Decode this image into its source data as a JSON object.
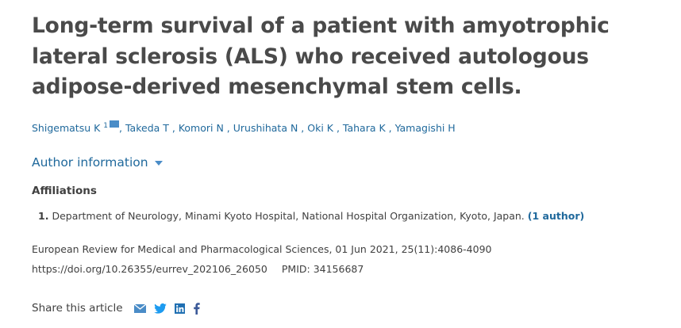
{
  "title": "Long-term survival of a patient with amyotrophic lateral sclerosis (ALS) who received autologous adipose-derived mesenchymal stem cells.",
  "authors": [
    {
      "name": "Shigematsu K",
      "sup": "1"
    },
    {
      "name": "Takeda T"
    },
    {
      "name": "Komori N"
    },
    {
      "name": "Urushihata N"
    },
    {
      "name": "Oki K"
    },
    {
      "name": "Tahara K"
    },
    {
      "name": "Yamagishi H"
    }
  ],
  "author_info_label": "Author information",
  "affiliations_heading": "Affiliations",
  "affiliations": [
    {
      "num": "1.",
      "text": "Department of Neurology, Minami Kyoto Hospital, National Hospital Organization, Kyoto, Japan.",
      "count": "(1 author)"
    }
  ],
  "journal": {
    "name": "European Review for Medical and Pharmacological Sciences",
    "details": ", 01 Jun 2021, 25(11):4086-4090"
  },
  "doi": "https://doi.org/10.26355/eurrev_202106_26050",
  "pmid": "PMID: 34156687",
  "share_label": "Share this article",
  "share_icons": [
    "email-icon",
    "twitter-icon",
    "linkedin-icon",
    "facebook-icon"
  ],
  "colors": {
    "link": "#20699c",
    "icon": "#4a8cc7",
    "text": "#404040"
  }
}
